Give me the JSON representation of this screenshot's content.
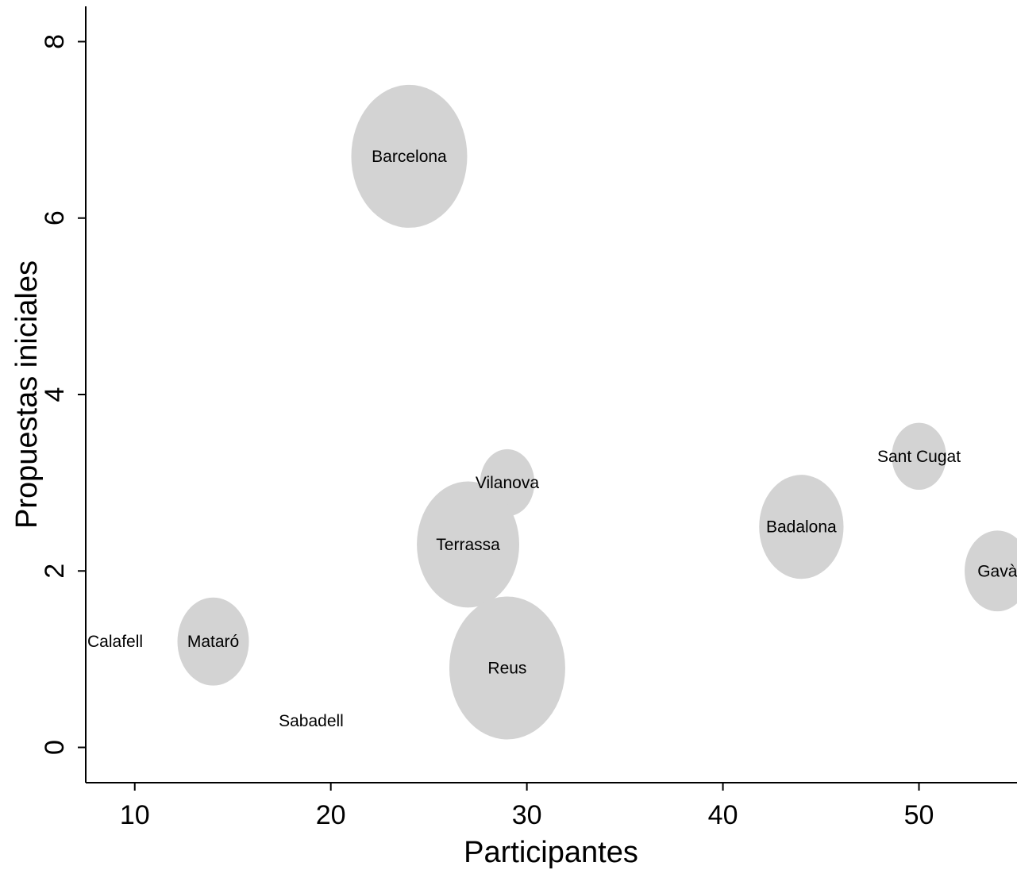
{
  "chart_data": {
    "type": "scatter",
    "title": "",
    "xlabel": "Participantes",
    "ylabel": "Propuestas iniciales",
    "xlim": [
      7.5,
      55
    ],
    "ylim": [
      -0.4,
      8.4
    ],
    "xticks": [
      "10",
      "20",
      "30",
      "40",
      "50"
    ],
    "yticks": [
      "0",
      "2",
      "4",
      "6",
      "8"
    ],
    "grid": false,
    "legend": "none",
    "bubble_color": "#d3d3d3",
    "points": [
      {
        "label": "Barcelona",
        "x": 24,
        "y": 6.7,
        "size": 1.0
      },
      {
        "label": "Sant Cugat",
        "x": 50,
        "y": 3.3,
        "size": 0.22
      },
      {
        "label": "Vilanova",
        "x": 29,
        "y": 3.0,
        "size": 0.22
      },
      {
        "label": "Badalona",
        "x": 44,
        "y": 2.5,
        "size": 0.53
      },
      {
        "label": "Terrassa",
        "x": 27,
        "y": 2.3,
        "size": 0.78
      },
      {
        "label": "Gavà",
        "x": 54,
        "y": 2.0,
        "size": 0.32
      },
      {
        "label": "Calafell",
        "x": 9,
        "y": 1.2,
        "size": 0
      },
      {
        "label": "Mataró",
        "x": 14,
        "y": 1.2,
        "size": 0.38
      },
      {
        "label": "Reus",
        "x": 29,
        "y": 0.9,
        "size": 1.0
      },
      {
        "label": "Sabadell",
        "x": 19,
        "y": 0.3,
        "size": 0
      }
    ]
  }
}
